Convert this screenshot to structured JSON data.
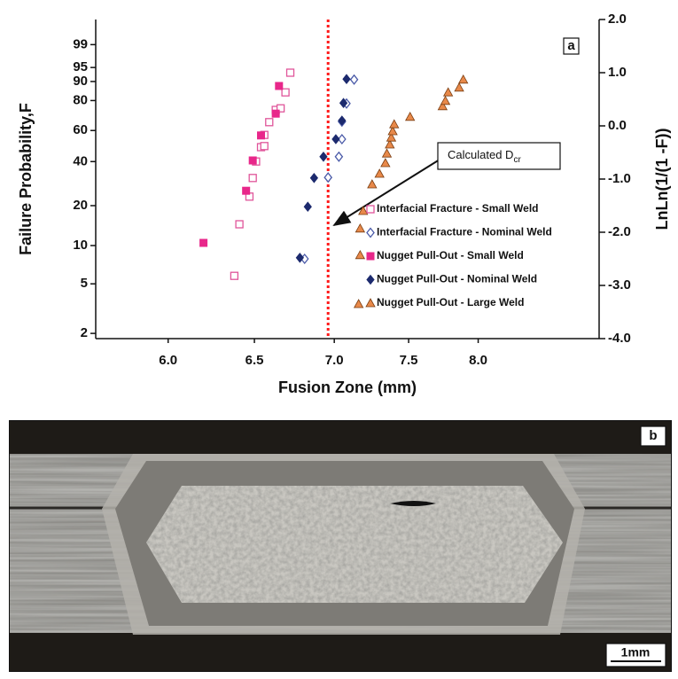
{
  "chart_data": {
    "type": "scatter",
    "panel_label": "a",
    "xlabel": "Fusion Zone (mm)",
    "ylabel": "Failure Probability,F",
    "y2label": "LnLn(1/(1 -F))",
    "xscale": "log",
    "xlim": [
      5.61,
      8.95
    ],
    "xticks": [
      {
        "value": 6,
        "label": "6.0"
      },
      {
        "value": 6.5,
        "label": "6.5"
      },
      {
        "value": 7,
        "label": "7.0"
      },
      {
        "value": 7.5,
        "label": "7.5"
      },
      {
        "value": 8,
        "label": "8.0"
      }
    ],
    "yscale": "weibull",
    "ylim": [
      1.815,
      99.938
    ],
    "yticks": [
      2,
      5,
      10,
      20,
      40,
      60,
      80,
      90,
      95,
      99
    ],
    "y2lim": [
      -4,
      2
    ],
    "y2ticks": [
      {
        "value": -4,
        "label": "-4.0"
      },
      {
        "value": -3,
        "label": "-3.0"
      },
      {
        "value": -2,
        "label": "-2.0"
      },
      {
        "value": -1,
        "label": "-1.0"
      },
      {
        "value": 0,
        "label": "0.0"
      },
      {
        "value": 1,
        "label": "1.0"
      },
      {
        "value": 2,
        "label": "2.0"
      }
    ],
    "legend": "lower right",
    "vline": {
      "x": 6.96,
      "color": "#ff1a1a"
    },
    "annotation": {
      "text": "Calculated D",
      "subscript": "cr"
    },
    "series": [
      {
        "name": "Interfacial Fracture - Small Weld",
        "marker": "square-open",
        "color": "#e0559a",
        "axis": "y2",
        "x": [
          6.38,
          6.41,
          6.47,
          6.49,
          6.51,
          6.54,
          6.56,
          6.56,
          6.59,
          6.63,
          6.66,
          6.69,
          6.72
        ],
        "values": [
          -2.82,
          -1.85,
          -1.33,
          -0.98,
          -0.67,
          -0.4,
          -0.38,
          -0.17,
          0.07,
          0.3,
          0.33,
          0.63,
          1.0
        ]
      },
      {
        "name": "Interfacial Fracture - Nominal Weld",
        "marker": "diamond-open",
        "color": "#4a5aa8",
        "axis": "y2",
        "x": [
          6.81,
          6.96,
          7.03,
          7.05,
          7.05,
          7.08,
          7.13
        ],
        "values": [
          -2.5,
          -0.97,
          -0.58,
          -0.25,
          0.08,
          0.42,
          0.87
        ]
      },
      {
        "name": "Nugget Pull-Out - Small Weld",
        "marker": "square",
        "color": "#e8278a",
        "axis": "y2",
        "x": [
          6.2,
          6.45,
          6.49,
          6.54,
          6.63,
          6.65
        ],
        "values": [
          -2.2,
          -1.22,
          -0.65,
          -0.18,
          0.23,
          0.75
        ]
      },
      {
        "name": "Nugget Pull-Out - Nominal Weld",
        "marker": "diamond",
        "color": "#1c2a6e",
        "axis": "y2",
        "x": [
          6.78,
          6.83,
          6.87,
          6.93,
          7.01,
          7.05,
          7.06,
          7.08
        ],
        "values": [
          -2.48,
          -1.52,
          -0.98,
          -0.58,
          -0.25,
          0.1,
          0.43,
          0.88
        ]
      },
      {
        "name": "Nugget Pull-Out - Large Weld",
        "marker": "triangle",
        "color": "#e8894a",
        "axis": "y2",
        "x": [
          7.16,
          7.17,
          7.17,
          7.19,
          7.25,
          7.3,
          7.34,
          7.35,
          7.37,
          7.38,
          7.39,
          7.4,
          7.51,
          7.74,
          7.76,
          7.78,
          7.86,
          7.89
        ],
        "values": [
          -3.35,
          -2.43,
          -1.93,
          -1.6,
          -1.1,
          -0.9,
          -0.7,
          -0.52,
          -0.35,
          -0.22,
          -0.1,
          0.03,
          0.17,
          0.37,
          0.47,
          0.63,
          0.72,
          0.87
        ]
      }
    ]
  },
  "micrograph": {
    "panel_label": "b",
    "scale_bar_label": "1mm"
  }
}
